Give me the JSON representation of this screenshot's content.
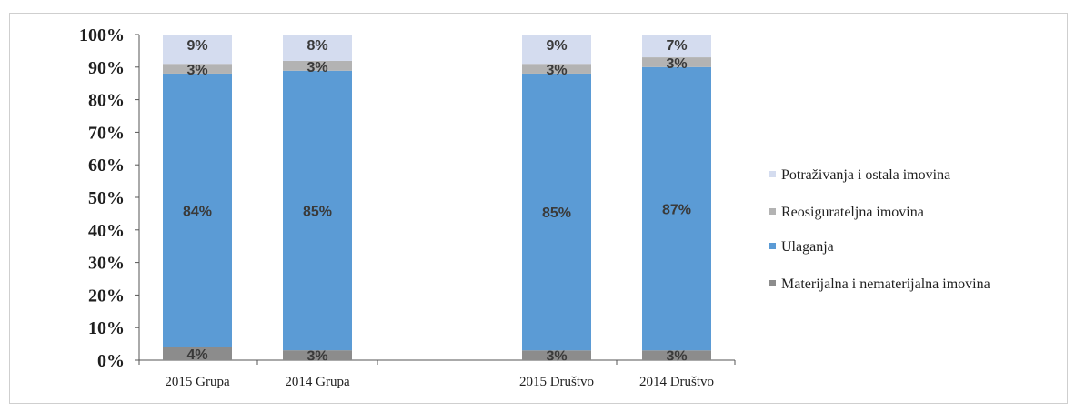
{
  "chart_data": {
    "type": "bar",
    "stacked": true,
    "percent_stacked": true,
    "categories": [
      "2015 Grupa",
      "2014 Grupa",
      "",
      "2015 Društvo",
      "2014 Društvo"
    ],
    "series": [
      {
        "name": "Materijalna i nematerijalna imovina",
        "values": [
          4,
          3,
          null,
          3,
          3
        ],
        "labels": [
          "4%",
          "3%",
          "",
          "3%",
          "3%"
        ],
        "color": "#8c8c8c"
      },
      {
        "name": "Ulaganja",
        "values": [
          84,
          85,
          null,
          85,
          87
        ],
        "labels": [
          "84%",
          "85%",
          "",
          "85%",
          "87%"
        ],
        "color": "#5b9bd5"
      },
      {
        "name": "Reosigurateljna imovina",
        "values": [
          3,
          3,
          null,
          3,
          3
        ],
        "labels": [
          "3%",
          "3%",
          "",
          "3%",
          "3%"
        ],
        "color": "#b3b3b3"
      },
      {
        "name": "Potraživanja i ostala imovina",
        "values": [
          9,
          8,
          null,
          9,
          7
        ],
        "labels": [
          "9%",
          "8%",
          "",
          "9%",
          "7%"
        ],
        "color": "#d4dcef"
      }
    ],
    "ylim": [
      0,
      100
    ],
    "y_ticks": [
      "0%",
      "10%",
      "20%",
      "30%",
      "40%",
      "50%",
      "60%",
      "70%",
      "80%",
      "90%",
      "100%"
    ],
    "legend_position": "right",
    "legend_order": [
      "Potraživanja i ostala imovina",
      "Reosigurateljna imovina",
      "Ulaganja",
      "Materijalna i nematerijalna imovina"
    ],
    "grid": false
  }
}
